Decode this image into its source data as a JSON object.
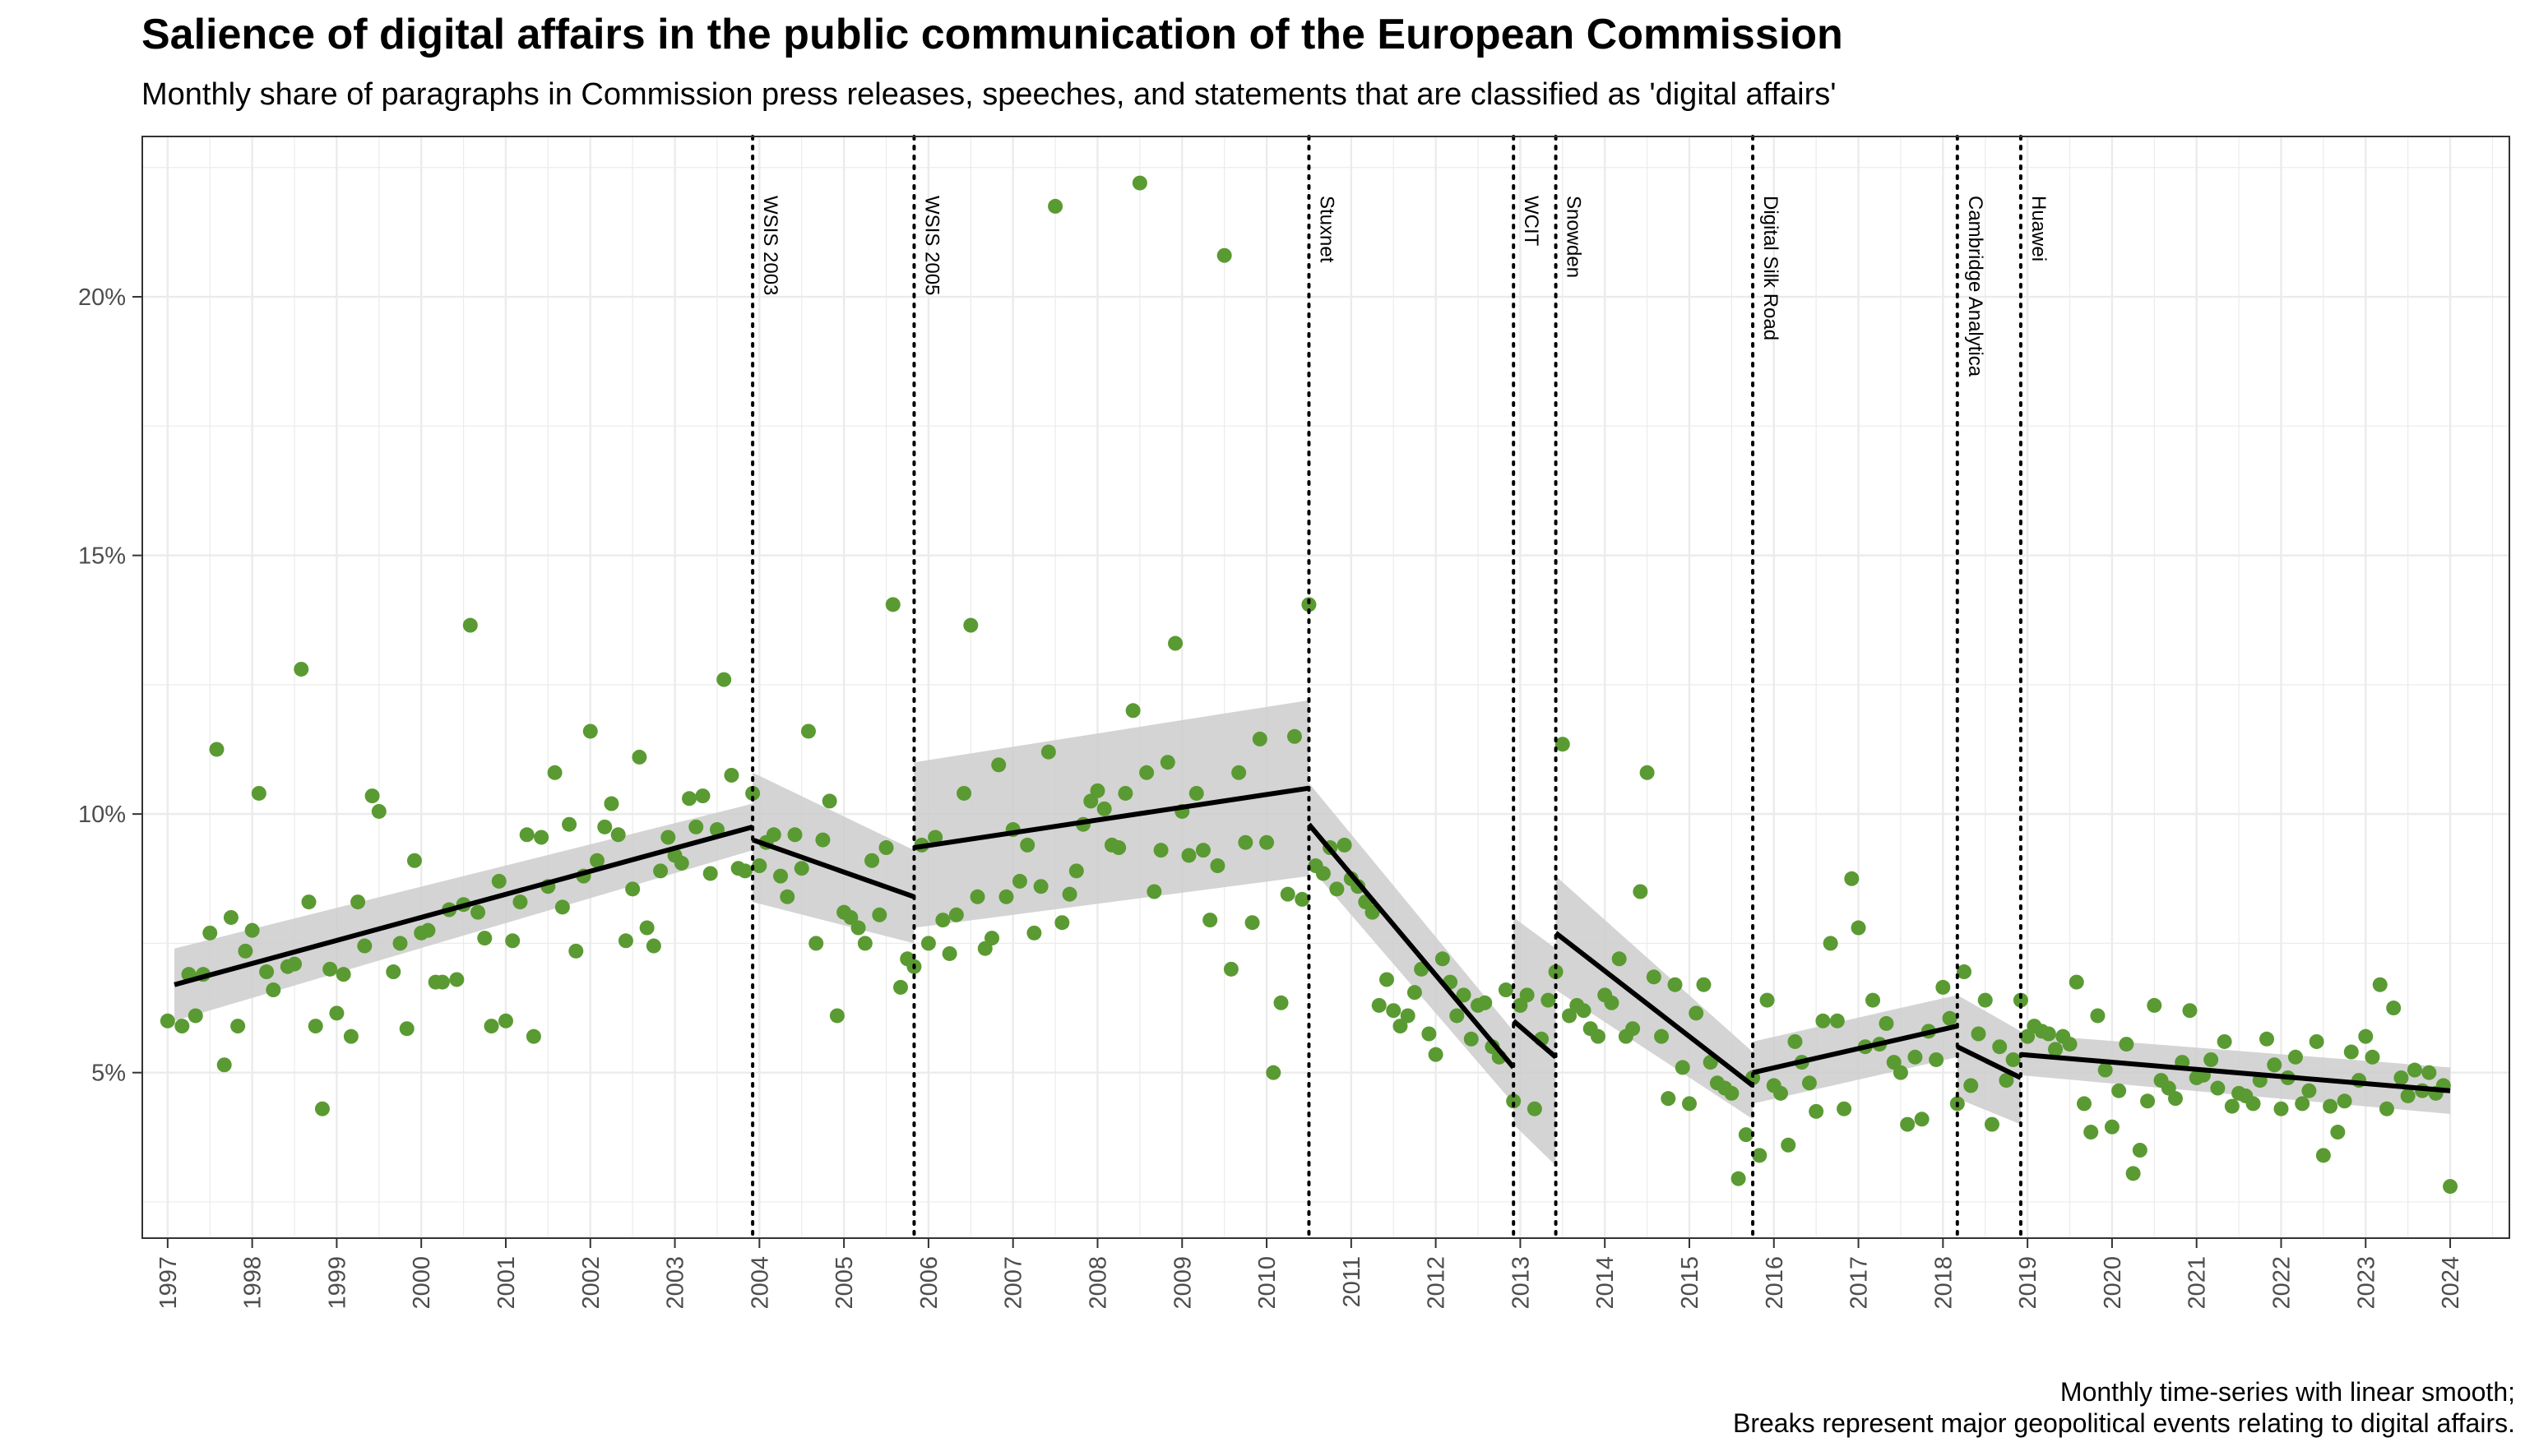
{
  "title": "Salience of digital affairs in the public communication of the European Commission",
  "subtitle": "Monthly share of paragraphs in Commission press releases, speeches, and statements that are classified as 'digital affairs'",
  "caption": [
    "Monthly time-series with linear smooth;",
    "Breaks represent major geopolitical events relating to digital affairs."
  ],
  "colors": {
    "points": "#5a9a32",
    "trend": "#000000",
    "band": "#cccccc",
    "grid": "#ebebeb"
  },
  "chart_data": {
    "type": "scatter",
    "xlim": [
      1996.7,
      2024.7
    ],
    "ylim": [
      1.8,
      23.1
    ],
    "x_ticks": [
      "1997",
      "1998",
      "1999",
      "2000",
      "2001",
      "2002",
      "2003",
      "2004",
      "2005",
      "2006",
      "2007",
      "2008",
      "2009",
      "2010",
      "2011",
      "2012",
      "2013",
      "2014",
      "2015",
      "2016",
      "2017",
      "2018",
      "2019",
      "2020",
      "2021",
      "2022",
      "2023",
      "2024"
    ],
    "y_ticks": [
      {
        "value": 5,
        "label": "5%"
      },
      {
        "value": 10,
        "label": "10%"
      },
      {
        "value": 15,
        "label": "15%"
      },
      {
        "value": 20,
        "label": "20%"
      }
    ],
    "grid": true,
    "breaks": [
      {
        "label": "WSIS 2003",
        "x": 2003.92
      },
      {
        "label": "WSIS 2005",
        "x": 2005.83
      },
      {
        "label": "Stuxnet",
        "x": 2010.5
      },
      {
        "label": "WCIT",
        "x": 2012.92
      },
      {
        "label": "Snowden",
        "x": 2013.42
      },
      {
        "label": "Digital Silk Road",
        "x": 2015.75
      },
      {
        "label": "Cambridge Analytica",
        "x": 2018.17
      },
      {
        "label": "Huawei",
        "x": 2018.92
      }
    ],
    "trends": [
      {
        "x": [
          1997.08,
          2003.92
        ],
        "y": [
          6.7,
          9.75
        ],
        "band": [
          [
            7.4,
            6.0
          ],
          [
            10.2,
            9.3
          ]
        ]
      },
      {
        "x": [
          2003.92,
          2005.83
        ],
        "y": [
          9.5,
          8.4
        ],
        "band": [
          [
            10.8,
            8.3
          ],
          [
            9.3,
            7.5
          ]
        ]
      },
      {
        "x": [
          2005.83,
          2010.5
        ],
        "y": [
          9.35,
          10.5
        ],
        "band": [
          [
            11.0,
            7.8
          ],
          [
            12.2,
            8.8
          ]
        ]
      },
      {
        "x": [
          2010.5,
          2012.92
        ],
        "y": [
          9.8,
          5.1
        ],
        "band": [
          [
            10.6,
            9.0
          ],
          [
            5.8,
            4.4
          ]
        ]
      },
      {
        "x": [
          2012.92,
          2013.42
        ],
        "y": [
          6.0,
          5.3
        ],
        "band": [
          [
            8.0,
            4.0
          ],
          [
            7.4,
            3.2
          ]
        ]
      },
      {
        "x": [
          2013.42,
          2015.75
        ],
        "y": [
          7.7,
          4.75
        ],
        "band": [
          [
            8.8,
            6.6
          ],
          [
            5.4,
            4.1
          ]
        ]
      },
      {
        "x": [
          2015.75,
          2018.17
        ],
        "y": [
          5.0,
          5.9
        ],
        "band": [
          [
            5.6,
            4.4
          ],
          [
            6.5,
            5.3
          ]
        ]
      },
      {
        "x": [
          2018.17,
          2018.92
        ],
        "y": [
          5.5,
          4.9
        ],
        "band": [
          [
            6.5,
            4.5
          ],
          [
            5.8,
            4.0
          ]
        ]
      },
      {
        "x": [
          2018.92,
          2024.0
        ],
        "y": [
          5.35,
          4.65
        ],
        "band": [
          [
            5.75,
            4.95
          ],
          [
            5.1,
            4.2
          ]
        ]
      }
    ],
    "points": [
      [
        1997.0,
        6.0
      ],
      [
        1997.17,
        5.9
      ],
      [
        1997.25,
        6.9
      ],
      [
        1997.33,
        6.1
      ],
      [
        1997.42,
        6.9
      ],
      [
        1997.5,
        7.7
      ],
      [
        1997.58,
        11.25
      ],
      [
        1997.67,
        5.15
      ],
      [
        1997.75,
        8.0
      ],
      [
        1997.83,
        5.9
      ],
      [
        1997.92,
        7.35
      ],
      [
        1998.0,
        7.75
      ],
      [
        1998.08,
        10.4
      ],
      [
        1998.17,
        6.95
      ],
      [
        1998.25,
        6.6
      ],
      [
        1998.42,
        7.05
      ],
      [
        1998.5,
        7.1
      ],
      [
        1998.58,
        12.8
      ],
      [
        1998.67,
        8.3
      ],
      [
        1998.75,
        5.9
      ],
      [
        1998.83,
        4.3
      ],
      [
        1998.92,
        7.0
      ],
      [
        1999.0,
        6.15
      ],
      [
        1999.08,
        6.9
      ],
      [
        1999.17,
        5.7
      ],
      [
        1999.25,
        8.3
      ],
      [
        1999.33,
        7.45
      ],
      [
        1999.42,
        10.35
      ],
      [
        1999.5,
        10.05
      ],
      [
        1999.67,
        6.95
      ],
      [
        1999.75,
        7.5
      ],
      [
        1999.83,
        5.85
      ],
      [
        1999.92,
        9.1
      ],
      [
        2000.0,
        7.7
      ],
      [
        2000.08,
        7.75
      ],
      [
        2000.17,
        6.75
      ],
      [
        2000.25,
        6.75
      ],
      [
        2000.33,
        8.15
      ],
      [
        2000.42,
        6.8
      ],
      [
        2000.5,
        8.25
      ],
      [
        2000.58,
        13.65
      ],
      [
        2000.67,
        8.1
      ],
      [
        2000.75,
        7.6
      ],
      [
        2000.83,
        5.9
      ],
      [
        2000.92,
        8.7
      ],
      [
        2001.0,
        6.0
      ],
      [
        2001.08,
        7.55
      ],
      [
        2001.17,
        8.3
      ],
      [
        2001.25,
        9.6
      ],
      [
        2001.33,
        5.7
      ],
      [
        2001.42,
        9.55
      ],
      [
        2001.5,
        8.6
      ],
      [
        2001.58,
        10.8
      ],
      [
        2001.67,
        8.2
      ],
      [
        2001.75,
        9.8
      ],
      [
        2001.83,
        7.35
      ],
      [
        2001.92,
        8.8
      ],
      [
        2002.0,
        11.6
      ],
      [
        2002.08,
        9.1
      ],
      [
        2002.17,
        9.75
      ],
      [
        2002.25,
        10.2
      ],
      [
        2002.33,
        9.6
      ],
      [
        2002.42,
        7.55
      ],
      [
        2002.5,
        8.55
      ],
      [
        2002.58,
        11.1
      ],
      [
        2002.67,
        7.8
      ],
      [
        2002.75,
        7.45
      ],
      [
        2002.83,
        8.9
      ],
      [
        2002.92,
        9.55
      ],
      [
        2003.0,
        9.2
      ],
      [
        2003.08,
        9.05
      ],
      [
        2003.17,
        10.3
      ],
      [
        2003.25,
        9.75
      ],
      [
        2003.33,
        10.35
      ],
      [
        2003.42,
        8.85
      ],
      [
        2003.5,
        9.7
      ],
      [
        2003.58,
        12.6
      ],
      [
        2003.67,
        10.75
      ],
      [
        2003.75,
        8.95
      ],
      [
        2003.83,
        8.9
      ],
      [
        2003.92,
        10.4
      ],
      [
        2004.0,
        9.0
      ],
      [
        2004.08,
        9.45
      ],
      [
        2004.17,
        9.6
      ],
      [
        2004.25,
        8.8
      ],
      [
        2004.33,
        8.4
      ],
      [
        2004.42,
        9.6
      ],
      [
        2004.5,
        8.95
      ],
      [
        2004.58,
        11.6
      ],
      [
        2004.67,
        7.5
      ],
      [
        2004.75,
        9.5
      ],
      [
        2004.83,
        10.25
      ],
      [
        2004.92,
        6.1
      ],
      [
        2005.0,
        8.1
      ],
      [
        2005.08,
        8.0
      ],
      [
        2005.17,
        7.8
      ],
      [
        2005.25,
        7.5
      ],
      [
        2005.33,
        9.1
      ],
      [
        2005.42,
        8.05
      ],
      [
        2005.5,
        9.35
      ],
      [
        2005.58,
        14.05
      ],
      [
        2005.67,
        6.65
      ],
      [
        2005.75,
        7.2
      ],
      [
        2005.83,
        7.05
      ],
      [
        2005.92,
        9.4
      ],
      [
        2006.0,
        7.5
      ],
      [
        2006.08,
        9.55
      ],
      [
        2006.17,
        7.95
      ],
      [
        2006.25,
        7.3
      ],
      [
        2006.33,
        8.05
      ],
      [
        2006.42,
        10.4
      ],
      [
        2006.5,
        13.65
      ],
      [
        2006.58,
        8.4
      ],
      [
        2006.67,
        7.4
      ],
      [
        2006.75,
        7.6
      ],
      [
        2006.83,
        10.95
      ],
      [
        2006.92,
        8.4
      ],
      [
        2007.0,
        9.7
      ],
      [
        2007.08,
        8.7
      ],
      [
        2007.17,
        9.4
      ],
      [
        2007.25,
        7.7
      ],
      [
        2007.33,
        8.6
      ],
      [
        2007.42,
        11.2
      ],
      [
        2007.5,
        21.75
      ],
      [
        2007.58,
        7.9
      ],
      [
        2007.67,
        8.45
      ],
      [
        2007.75,
        8.9
      ],
      [
        2007.83,
        9.8
      ],
      [
        2007.92,
        10.25
      ],
      [
        2008.0,
        10.45
      ],
      [
        2008.08,
        10.1
      ],
      [
        2008.17,
        9.4
      ],
      [
        2008.25,
        9.35
      ],
      [
        2008.33,
        10.4
      ],
      [
        2008.42,
        12.0
      ],
      [
        2008.5,
        22.2
      ],
      [
        2008.58,
        10.8
      ],
      [
        2008.67,
        8.5
      ],
      [
        2008.75,
        9.3
      ],
      [
        2008.83,
        11.0
      ],
      [
        2008.92,
        13.3
      ],
      [
        2009.0,
        10.05
      ],
      [
        2009.08,
        9.2
      ],
      [
        2009.17,
        10.4
      ],
      [
        2009.25,
        9.3
      ],
      [
        2009.33,
        7.95
      ],
      [
        2009.42,
        9.0
      ],
      [
        2009.5,
        20.8
      ],
      [
        2009.58,
        7.0
      ],
      [
        2009.67,
        10.8
      ],
      [
        2009.75,
        9.45
      ],
      [
        2009.83,
        7.9
      ],
      [
        2009.92,
        11.45
      ],
      [
        2010.0,
        9.45
      ],
      [
        2010.08,
        5.0
      ],
      [
        2010.17,
        6.35
      ],
      [
        2010.25,
        8.45
      ],
      [
        2010.33,
        11.5
      ],
      [
        2010.42,
        8.35
      ],
      [
        2010.5,
        14.05
      ],
      [
        2010.58,
        9.0
      ],
      [
        2010.67,
        8.85
      ],
      [
        2010.75,
        9.35
      ],
      [
        2010.83,
        8.55
      ],
      [
        2010.92,
        9.4
      ],
      [
        2011.0,
        8.75
      ],
      [
        2011.08,
        8.6
      ],
      [
        2011.17,
        8.3
      ],
      [
        2011.25,
        8.1
      ],
      [
        2011.33,
        6.3
      ],
      [
        2011.42,
        6.8
      ],
      [
        2011.5,
        6.2
      ],
      [
        2011.58,
        5.9
      ],
      [
        2011.67,
        6.1
      ],
      [
        2011.75,
        6.55
      ],
      [
        2011.83,
        7.0
      ],
      [
        2011.92,
        5.75
      ],
      [
        2012.0,
        5.35
      ],
      [
        2012.08,
        7.2
      ],
      [
        2012.17,
        6.75
      ],
      [
        2012.25,
        6.1
      ],
      [
        2012.33,
        6.5
      ],
      [
        2012.42,
        5.65
      ],
      [
        2012.5,
        6.3
      ],
      [
        2012.58,
        6.35
      ],
      [
        2012.67,
        5.5
      ],
      [
        2012.75,
        5.3
      ],
      [
        2012.83,
        6.6
      ],
      [
        2012.92,
        4.45
      ],
      [
        2013.0,
        6.3
      ],
      [
        2013.08,
        6.5
      ],
      [
        2013.17,
        4.3
      ],
      [
        2013.25,
        5.65
      ],
      [
        2013.33,
        6.4
      ],
      [
        2013.42,
        6.95
      ],
      [
        2013.5,
        11.35
      ],
      [
        2013.58,
        6.1
      ],
      [
        2013.67,
        6.3
      ],
      [
        2013.75,
        6.2
      ],
      [
        2013.83,
        5.85
      ],
      [
        2013.92,
        5.7
      ],
      [
        2014.0,
        6.5
      ],
      [
        2014.08,
        6.35
      ],
      [
        2014.17,
        7.2
      ],
      [
        2014.25,
        5.7
      ],
      [
        2014.33,
        5.85
      ],
      [
        2014.42,
        8.5
      ],
      [
        2014.5,
        10.8
      ],
      [
        2014.58,
        6.85
      ],
      [
        2014.67,
        5.7
      ],
      [
        2014.75,
        4.5
      ],
      [
        2014.83,
        6.7
      ],
      [
        2014.92,
        5.1
      ],
      [
        2015.0,
        4.4
      ],
      [
        2015.08,
        6.15
      ],
      [
        2015.17,
        6.7
      ],
      [
        2015.25,
        5.2
      ],
      [
        2015.33,
        4.8
      ],
      [
        2015.42,
        4.7
      ],
      [
        2015.5,
        4.6
      ],
      [
        2015.58,
        2.95
      ],
      [
        2015.67,
        3.8
      ],
      [
        2015.75,
        4.9
      ],
      [
        2015.83,
        3.4
      ],
      [
        2015.92,
        6.4
      ],
      [
        2016.0,
        4.75
      ],
      [
        2016.08,
        4.6
      ],
      [
        2016.17,
        3.6
      ],
      [
        2016.25,
        5.6
      ],
      [
        2016.33,
        5.2
      ],
      [
        2016.42,
        4.8
      ],
      [
        2016.5,
        4.25
      ],
      [
        2016.58,
        6.0
      ],
      [
        2016.67,
        7.5
      ],
      [
        2016.75,
        6.0
      ],
      [
        2016.83,
        4.3
      ],
      [
        2016.92,
        8.75
      ],
      [
        2017.0,
        7.8
      ],
      [
        2017.08,
        5.5
      ],
      [
        2017.17,
        6.4
      ],
      [
        2017.25,
        5.55
      ],
      [
        2017.33,
        5.95
      ],
      [
        2017.42,
        5.2
      ],
      [
        2017.5,
        5.0
      ],
      [
        2017.58,
        4.0
      ],
      [
        2017.67,
        5.3
      ],
      [
        2017.75,
        4.1
      ],
      [
        2017.83,
        5.8
      ],
      [
        2017.92,
        5.25
      ],
      [
        2018.0,
        6.65
      ],
      [
        2018.08,
        6.05
      ],
      [
        2018.17,
        4.4
      ],
      [
        2018.25,
        6.95
      ],
      [
        2018.33,
        4.75
      ],
      [
        2018.42,
        5.75
      ],
      [
        2018.5,
        6.4
      ],
      [
        2018.58,
        4.0
      ],
      [
        2018.67,
        5.5
      ],
      [
        2018.75,
        4.85
      ],
      [
        2018.83,
        5.25
      ],
      [
        2018.92,
        6.4
      ],
      [
        2019.0,
        5.7
      ],
      [
        2019.08,
        5.9
      ],
      [
        2019.17,
        5.8
      ],
      [
        2019.25,
        5.75
      ],
      [
        2019.33,
        5.45
      ],
      [
        2019.42,
        5.7
      ],
      [
        2019.5,
        5.55
      ],
      [
        2019.58,
        6.75
      ],
      [
        2019.67,
        4.4
      ],
      [
        2019.75,
        3.85
      ],
      [
        2019.83,
        6.1
      ],
      [
        2019.92,
        5.05
      ],
      [
        2020.0,
        3.95
      ],
      [
        2020.08,
        4.65
      ],
      [
        2020.17,
        5.55
      ],
      [
        2020.25,
        3.05
      ],
      [
        2020.33,
        3.5
      ],
      [
        2020.42,
        4.45
      ],
      [
        2020.5,
        6.3
      ],
      [
        2020.58,
        4.85
      ],
      [
        2020.67,
        4.7
      ],
      [
        2020.75,
        4.5
      ],
      [
        2020.83,
        5.2
      ],
      [
        2020.92,
        6.2
      ],
      [
        2021.0,
        4.9
      ],
      [
        2021.08,
        4.95
      ],
      [
        2021.17,
        5.25
      ],
      [
        2021.25,
        4.7
      ],
      [
        2021.33,
        5.6
      ],
      [
        2021.42,
        4.35
      ],
      [
        2021.5,
        4.6
      ],
      [
        2021.58,
        4.55
      ],
      [
        2021.67,
        4.4
      ],
      [
        2021.75,
        4.85
      ],
      [
        2021.83,
        5.65
      ],
      [
        2021.92,
        5.15
      ],
      [
        2022.0,
        4.3
      ],
      [
        2022.08,
        4.9
      ],
      [
        2022.17,
        5.3
      ],
      [
        2022.25,
        4.4
      ],
      [
        2022.33,
        4.65
      ],
      [
        2022.42,
        5.6
      ],
      [
        2022.5,
        3.4
      ],
      [
        2022.58,
        4.35
      ],
      [
        2022.67,
        3.85
      ],
      [
        2022.75,
        4.45
      ],
      [
        2022.83,
        5.4
      ],
      [
        2022.92,
        4.85
      ],
      [
        2023.0,
        5.7
      ],
      [
        2023.08,
        5.3
      ],
      [
        2023.17,
        6.7
      ],
      [
        2023.25,
        4.3
      ],
      [
        2023.33,
        6.25
      ],
      [
        2023.42,
        4.9
      ],
      [
        2023.5,
        4.55
      ],
      [
        2023.58,
        5.05
      ],
      [
        2023.67,
        4.65
      ],
      [
        2023.75,
        5.0
      ],
      [
        2023.83,
        4.6
      ],
      [
        2023.92,
        4.75
      ],
      [
        2024.0,
        2.8
      ]
    ]
  }
}
